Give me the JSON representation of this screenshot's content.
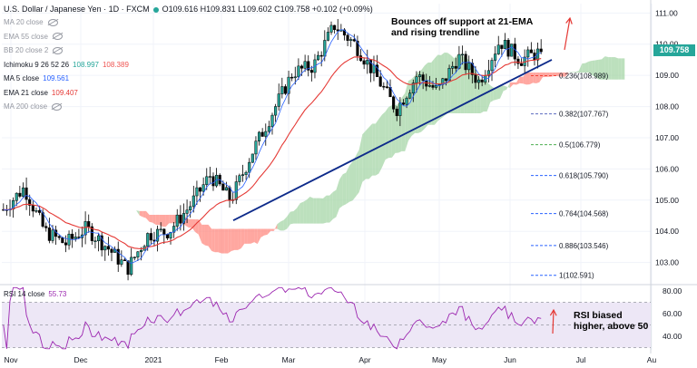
{
  "header": {
    "symbol": "U.S. Dollar / Japanese Yen · 1D · FXCM",
    "ohlc": "O109.616 H109.831 L109.602 C109.758 +0.102 (+0.09%)"
  },
  "indicators": [
    {
      "label": "MA 20 close",
      "value": "",
      "hidden": true
    },
    {
      "label": "EMA 55 close",
      "value": "",
      "hidden": true
    },
    {
      "label": "BB 20 close 2",
      "value": "",
      "hidden": true
    },
    {
      "label": "Ichimoku 9 26 52 26",
      "value": "108.997",
      "value2": "108.389",
      "hidden": false,
      "color": "#26a69a",
      "color2": "#ef5350"
    },
    {
      "label": "MA 5 close",
      "value": "109.561",
      "hidden": false,
      "color": "#2962ff"
    },
    {
      "label": "EMA 21 close",
      "value": "109.407",
      "hidden": false,
      "color": "#e53935"
    },
    {
      "label": "MA 200 close",
      "value": "",
      "hidden": true
    }
  ],
  "annotations": {
    "bounce": "Bounces off support at 21-EMA\nand rising trendline",
    "rsi": "RSI biased\nhigher, above 50"
  },
  "rsi_legend": {
    "label": "RSI 14 close",
    "value": "55.73"
  },
  "price_label": "109.758",
  "colors": {
    "up": "#26a69a",
    "down": "#ef5350",
    "candle": "#000000",
    "ema21": "#e53935",
    "ma5": "#2962ff",
    "trendline": "#0d2a8a",
    "cloud_bull": "#a5d6a7",
    "cloud_bear": "#ff8a80",
    "rsi": "#9c27b0",
    "rsi_band": "#ede7f6",
    "arrow": "#e53935"
  },
  "chart_data": [
    {
      "type": "candlestick",
      "title": "U.S. Dollar / Japanese Yen · 1D · FXCM",
      "x_ticks": [
        "Nov",
        "Dec",
        "2021",
        "Feb",
        "Mar",
        "Apr",
        "May",
        "Jun",
        "Jul",
        "Au"
      ],
      "y_ticks": [
        103.0,
        104.0,
        105.0,
        106.0,
        107.0,
        108.0,
        109.0,
        110.0,
        111.0
      ],
      "ylim": [
        102.35,
        111.3
      ],
      "trend_waypoints": [
        [
          "Nov",
          104.7
        ],
        [
          "Nov",
          105.4
        ],
        [
          "Dec",
          104.0
        ],
        [
          "Dec",
          103.6
        ],
        [
          "Dec",
          104.1
        ],
        [
          "Dec",
          103.5
        ],
        [
          "2021",
          102.8
        ],
        [
          "2021",
          103.9
        ],
        [
          "Feb",
          104.0
        ],
        [
          "Feb",
          104.8
        ],
        [
          "Feb",
          105.8
        ],
        [
          "Feb",
          105.0
        ],
        [
          "Mar",
          106.5
        ],
        [
          "Mar",
          107.8
        ],
        [
          "Mar",
          109.1
        ],
        [
          "Mar",
          109.3
        ],
        [
          "Apr",
          110.6
        ],
        [
          "Apr",
          110.0
        ],
        [
          "Apr",
          109.0
        ],
        [
          "Apr",
          107.9
        ],
        [
          "May",
          109.0
        ],
        [
          "May",
          108.5
        ],
        [
          "May",
          109.6
        ],
        [
          "May",
          108.8
        ],
        [
          "Jun",
          110.1
        ],
        [
          "Jun",
          109.5
        ],
        [
          "Jun",
          109.76
        ]
      ],
      "last_close": 109.758,
      "fibonacci": [
        {
          "label": "0.236(108.989)",
          "value": 108.989
        },
        {
          "label": "0.382(107.767)",
          "value": 107.767
        },
        {
          "label": "0.5(106.779)",
          "value": 106.779
        },
        {
          "label": "0.618(105.790)",
          "value": 105.79
        },
        {
          "label": "0.764(104.568)",
          "value": 104.568
        },
        {
          "label": "0.886(103.546)",
          "value": 103.546
        },
        {
          "label": "1(102.591)",
          "value": 102.591
        }
      ],
      "series": [
        {
          "name": "EMA 21 close",
          "last": 109.407
        },
        {
          "name": "MA 5 close",
          "last": 109.561
        },
        {
          "name": "Ichimoku 9 26 52 26",
          "last": 108.997
        }
      ]
    },
    {
      "type": "line",
      "title": "RSI 14 close",
      "y_ticks": [
        40.0,
        60.0,
        80.0
      ],
      "ylim": [
        28,
        84
      ],
      "band": [
        30,
        70
      ],
      "last": 55.73
    }
  ]
}
